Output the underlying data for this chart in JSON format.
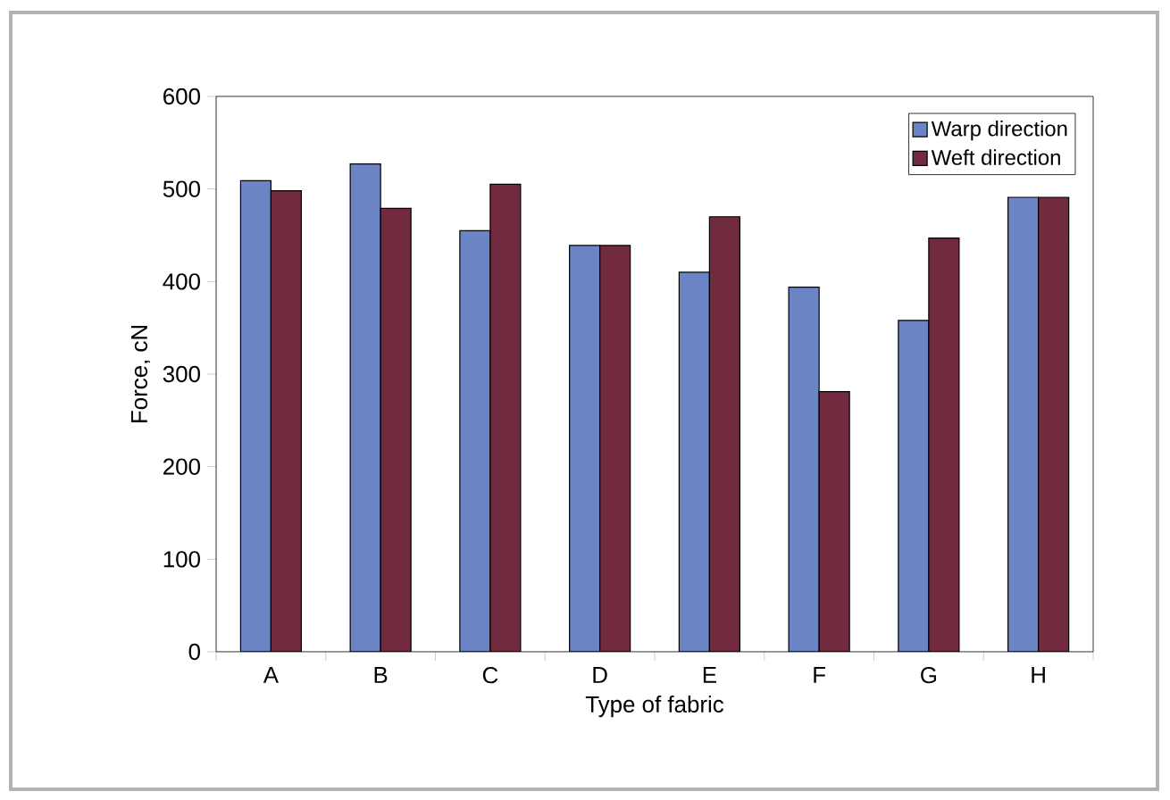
{
  "chart_data": {
    "type": "bar",
    "xlabel": "Type of fabric",
    "ylabel": "Force, cN",
    "categories": [
      "A",
      "B",
      "C",
      "D",
      "E",
      "F",
      "G",
      "H"
    ],
    "series": [
      {
        "name": "Warp direction",
        "color": "#6a84c4",
        "values": [
          509,
          527,
          455,
          439,
          410,
          394,
          358,
          491
        ]
      },
      {
        "name": "Weft direction",
        "color": "#722a3e",
        "values": [
          498,
          479,
          505,
          439,
          470,
          281,
          447,
          491
        ]
      }
    ],
    "ylim": [
      0,
      600
    ],
    "yticks": [
      0,
      100,
      200,
      300,
      400,
      500,
      600
    ],
    "legend": "top right",
    "grid": false
  }
}
